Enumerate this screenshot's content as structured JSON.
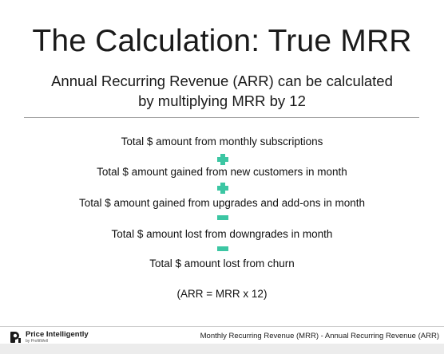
{
  "slide": {
    "title": "The Calculation: True MRR",
    "subtitle_line1": "Annual Recurring Revenue (ARR) can be calculated",
    "subtitle_line2": "by multiplying MRR by 12"
  },
  "formula": {
    "terms": [
      "Total $ amount from monthly subscriptions",
      "Total $ amount gained from new customers in month",
      "Total $ amount gained from upgrades and add-ons in month",
      "Total $ amount lost from downgrades in month",
      "Total $ amount lost from churn"
    ],
    "operators": [
      "plus",
      "plus",
      "minus",
      "minus"
    ],
    "operator_color": "#3cc6a3",
    "equation": "(ARR = MRR x 12)"
  },
  "footer": {
    "brand_name": "Price Intelligently",
    "brand_sub": "by ProfitWell",
    "caption": "Monthly Recurring Revenue (MRR) - Annual Recurring Revenue (ARR)"
  }
}
